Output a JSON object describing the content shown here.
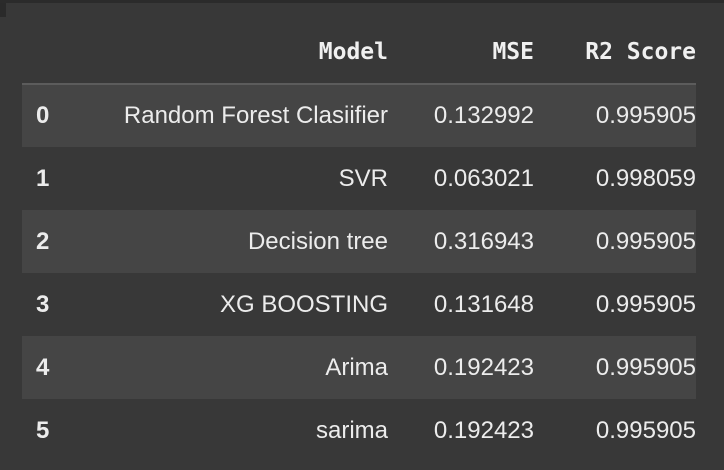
{
  "table": {
    "columns": [
      "",
      "Model",
      "MSE",
      "R2 Score"
    ],
    "rows": [
      {
        "index": "0",
        "model": "Random Forest Clasiifier",
        "mse": "0.132992",
        "r2": "0.995905"
      },
      {
        "index": "1",
        "model": "SVR",
        "mse": "0.063021",
        "r2": "0.998059"
      },
      {
        "index": "2",
        "model": "Decision tree",
        "mse": "0.316943",
        "r2": "0.995905"
      },
      {
        "index": "3",
        "model": "XG BOOSTING",
        "mse": "0.131648",
        "r2": "0.995905"
      },
      {
        "index": "4",
        "model": "Arima",
        "mse": "0.192423",
        "r2": "0.995905"
      },
      {
        "index": "5",
        "model": "sarima",
        "mse": "0.192423",
        "r2": "0.995905"
      }
    ]
  }
}
